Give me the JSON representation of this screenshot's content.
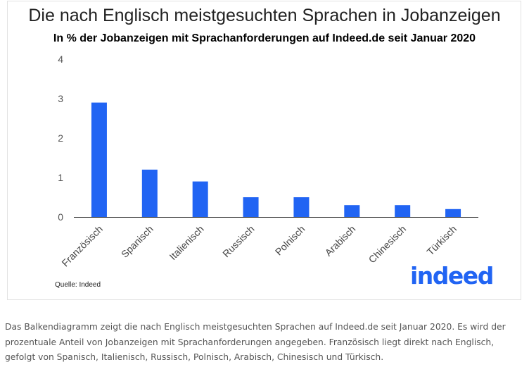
{
  "chart_data": {
    "type": "bar",
    "title": "Die nach Englisch meistgesuchten Sprachen in Jobanzeigen",
    "subtitle": "In % der Jobanzeigen mit Sprachanforderungen auf Indeed.de seit Januar 2020",
    "categories": [
      "Französisch",
      "Spanisch",
      "Italienisch",
      "Russisch",
      "Polnisch",
      "Arabisch",
      "Chinesisch",
      "Türkisch"
    ],
    "values": [
      2.9,
      1.2,
      0.9,
      0.5,
      0.5,
      0.3,
      0.3,
      0.2
    ],
    "ylim": [
      0,
      4
    ],
    "yticks": [
      "0",
      "1",
      "2",
      "3",
      "4"
    ],
    "xlabel": "",
    "ylabel": "",
    "grid": false,
    "bar_color": "#2164f3"
  },
  "source": "Quelle: Indeed",
  "logo": "indeed",
  "caption": "Das Balkendiagramm zeigt die nach Englisch meistgesuchten Sprachen auf Indeed.de seit Januar 2020. Es wird der prozentuale Anteil von Jobanzeigen mit Sprachanforderungen angegeben. Französisch liegt direkt nach Englisch, gefolgt von Spanisch, Italienisch, Russisch, Polnisch, Arabisch, Chinesisch und Türkisch."
}
